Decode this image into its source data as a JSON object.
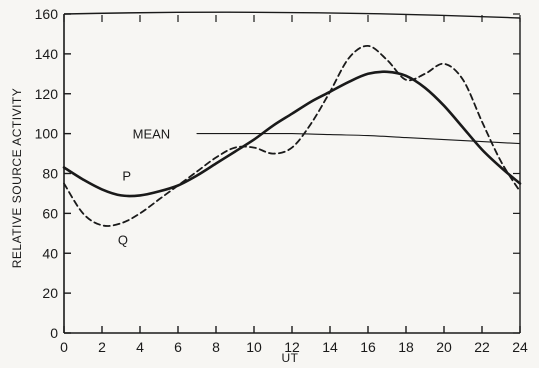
{
  "chart_data": {
    "type": "line",
    "title": "",
    "xlabel": "UT",
    "ylabel": "RELATIVE SOURCE ACTIVITY",
    "xlim": [
      0,
      24
    ],
    "ylim": [
      0,
      160
    ],
    "x_ticks": [
      0,
      2,
      4,
      6,
      8,
      10,
      12,
      14,
      16,
      18,
      20,
      22,
      24
    ],
    "y_ticks": [
      0,
      20,
      40,
      60,
      80,
      100,
      120,
      140,
      160
    ],
    "grid": false,
    "legend": "none (curves labeled directly)",
    "colors": {
      "ink": "#1a1a1a",
      "background": "#f7f6f3"
    },
    "series": [
      {
        "name": "P",
        "style": "solid-thick",
        "x": [
          0,
          1,
          2,
          3,
          4,
          5,
          6,
          7,
          8,
          9,
          10,
          11,
          12,
          13,
          14,
          15,
          16,
          17,
          18,
          19,
          20,
          21,
          22,
          23,
          24
        ],
        "y": [
          83,
          77,
          72,
          69,
          69,
          71,
          74,
          79,
          85,
          91,
          97,
          104,
          110,
          116,
          121,
          126,
          130,
          131,
          129,
          123,
          114,
          103,
          92,
          83,
          75
        ]
      },
      {
        "name": "Q",
        "style": "dashed",
        "x": [
          0,
          1,
          2,
          3,
          4,
          5,
          6,
          7,
          8,
          9,
          10,
          11,
          12,
          13,
          14,
          15,
          16,
          17,
          18,
          19,
          20,
          21,
          22,
          23,
          24
        ],
        "y": [
          75,
          60,
          54,
          55,
          60,
          67,
          74,
          81,
          88,
          93,
          93,
          90,
          93,
          105,
          121,
          138,
          144,
          137,
          127,
          130,
          135,
          127,
          106,
          86,
          71
        ]
      },
      {
        "name": "MEAN",
        "style": "solid-thin",
        "x": [
          7,
          10,
          12,
          14,
          16,
          18,
          20,
          22,
          24
        ],
        "y": [
          100,
          100,
          100,
          99.5,
          99,
          98,
          97,
          96,
          95
        ]
      }
    ],
    "annotations": [
      {
        "text": "MEAN",
        "x": 4.6,
        "y": 100
      },
      {
        "text": "P",
        "x": 3.3,
        "y": 79
      },
      {
        "text": "Q",
        "x": 3.1,
        "y": 47
      }
    ]
  }
}
